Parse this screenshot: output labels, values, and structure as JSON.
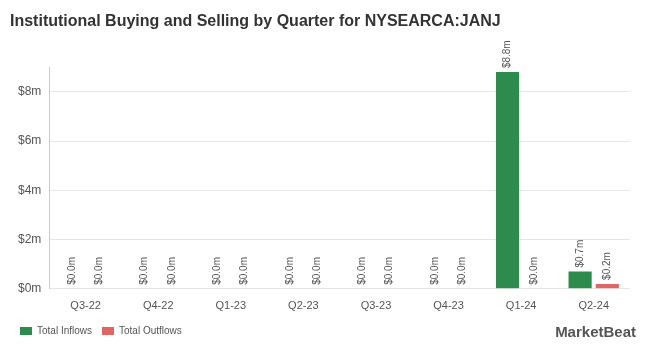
{
  "chart_data": {
    "type": "bar",
    "title": "Institutional Buying and Selling by Quarter for NYSEARCA:JANJ",
    "source": "MarketBeat",
    "categories": [
      "Q3-22",
      "Q4-22",
      "Q1-23",
      "Q2-23",
      "Q3-23",
      "Q4-23",
      "Q1-24",
      "Q2-24"
    ],
    "series": [
      {
        "name": "Total Inflows",
        "color": "#2e8b4e",
        "values": [
          0,
          0,
          0,
          0,
          0,
          0,
          8.8,
          0.7
        ],
        "value_labels": [
          "$0.0m",
          "$0.0m",
          "$0.0m",
          "$0.0m",
          "$0.0m",
          "$0.0m",
          "$8.8m",
          "$0.7m"
        ]
      },
      {
        "name": "Total Outflows",
        "color": "#e06666",
        "values": [
          0,
          0,
          0,
          0,
          0,
          0,
          0,
          0.2
        ],
        "value_labels": [
          "$0.0m",
          "$0.0m",
          "$0.0m",
          "$0.0m",
          "$0.0m",
          "$0.0m",
          "$0.0m",
          "$0.2m"
        ]
      }
    ],
    "ylim": [
      0,
      9
    ],
    "yticks": [
      {
        "value": 0,
        "label": "$0m"
      },
      {
        "value": 2,
        "label": "$2m"
      },
      {
        "value": 4,
        "label": "$4m"
      },
      {
        "value": 6,
        "label": "$6m"
      },
      {
        "value": 8,
        "label": "$8m"
      }
    ],
    "grid": true,
    "legend": "bottom-left",
    "data_labels": true
  }
}
